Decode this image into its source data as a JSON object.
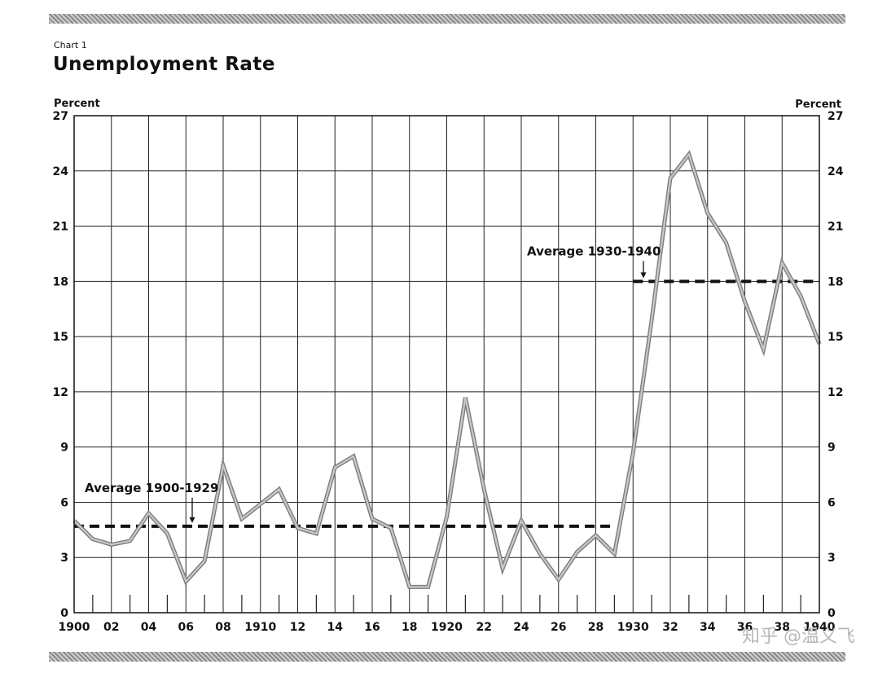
{
  "header": {
    "label": "Chart 1",
    "title": "Unemployment Rate"
  },
  "chart_data": {
    "type": "line",
    "title": "Unemployment Rate",
    "ylabel_left": "Percent",
    "ylabel_right": "Percent",
    "ylim": [
      0,
      27
    ],
    "yticks": [
      0,
      3,
      6,
      9,
      12,
      15,
      18,
      21,
      24,
      27
    ],
    "xlim": [
      1900,
      1940
    ],
    "xtick_labels": [
      "1900",
      "02",
      "04",
      "06",
      "08",
      "1910",
      "12",
      "14",
      "16",
      "18",
      "1920",
      "22",
      "24",
      "26",
      "28",
      "1930",
      "32",
      "34",
      "36",
      "38",
      "1940"
    ],
    "grid": true,
    "x": [
      1900,
      1901,
      1902,
      1903,
      1904,
      1905,
      1906,
      1907,
      1908,
      1909,
      1910,
      1911,
      1912,
      1913,
      1914,
      1915,
      1916,
      1917,
      1918,
      1919,
      1920,
      1921,
      1922,
      1923,
      1924,
      1925,
      1926,
      1927,
      1928,
      1929,
      1930,
      1931,
      1932,
      1933,
      1934,
      1935,
      1936,
      1937,
      1938,
      1939,
      1940
    ],
    "series": [
      {
        "values": [
          5.0,
          4.0,
          3.7,
          3.9,
          5.4,
          4.3,
          1.7,
          2.8,
          8.0,
          5.1,
          5.9,
          6.7,
          4.6,
          4.3,
          7.9,
          8.5,
          5.1,
          4.6,
          1.4,
          1.4,
          5.2,
          11.7,
          6.7,
          2.4,
          5.0,
          3.2,
          1.8,
          3.3,
          4.2,
          3.2,
          8.7,
          15.9,
          23.6,
          24.9,
          21.7,
          20.1,
          16.9,
          14.3,
          19.0,
          17.2,
          14.6
        ]
      }
    ],
    "annotations": [
      {
        "text": "Average 1900-1929",
        "from": 1900,
        "to": 1929,
        "value": 4.7
      },
      {
        "text": "Average 1930-1940",
        "from": 1930,
        "to": 1940,
        "value": 18.0
      }
    ]
  },
  "watermark": "知乎 @温义飞"
}
